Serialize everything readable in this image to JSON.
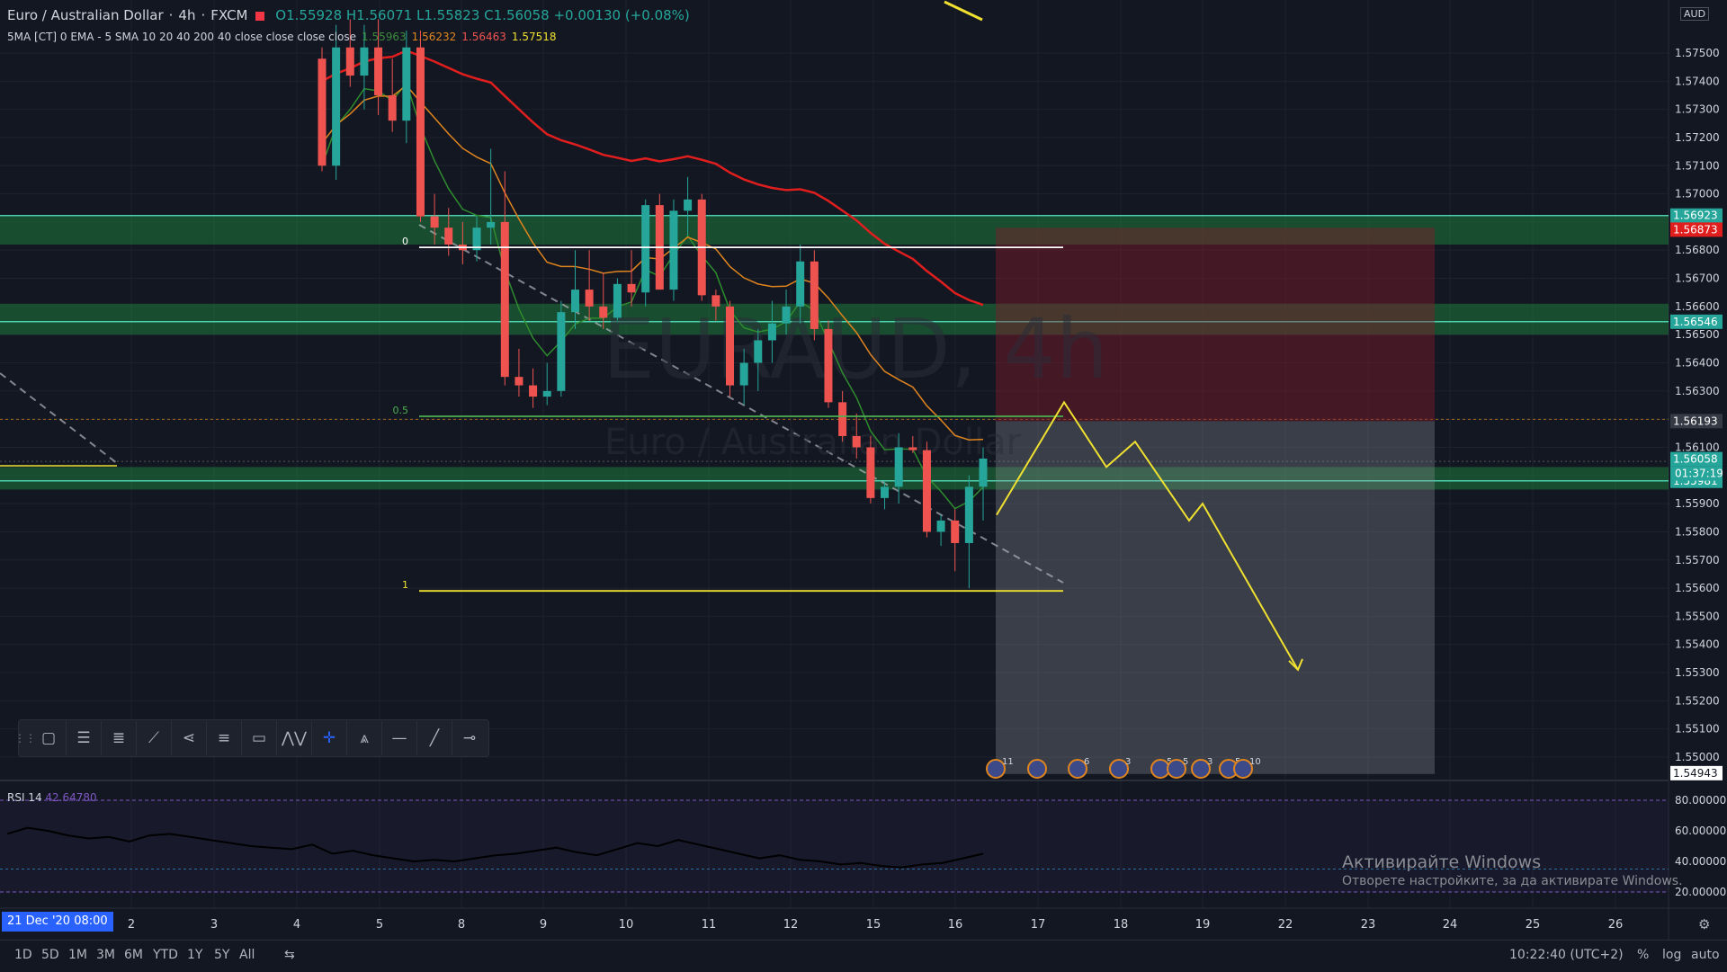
{
  "header": {
    "symbol": "Euro / Australian Dollar",
    "interval": "4h",
    "exchange": "FXCM",
    "open": "O1.55928",
    "high": "H1.56071",
    "low": "L1.55823",
    "close": "C1.56058",
    "change": "+0.00130 (+0.08%)"
  },
  "indicator": {
    "label": "5MA [CT] 0 EMA - 5 SMA 10 20 40 200 40 close close close close",
    "v1": "1.55963",
    "v2": "1.56232",
    "v3": "1.56463",
    "v4": "1.57518"
  },
  "watermark": {
    "symbol": "EURAUD, 4h",
    "name": "Euro / Australian Dollar"
  },
  "currency": "AUD",
  "rsi": {
    "label": "RSI 14",
    "value": "42.64780"
  },
  "windows": {
    "line1": "Активирайте Windows",
    "line2": "Отворете настройките, за да активирате Windows."
  },
  "date_badge": "21 Dec '20   08:00",
  "countdown": "01:37:19",
  "timeframes": [
    "1D",
    "5D",
    "1M",
    "3M",
    "6M",
    "YTD",
    "1Y",
    "5Y",
    "All"
  ],
  "clock": "10:22:40 (UTC+2)",
  "bottom_right": {
    "percent": "%",
    "log": "log",
    "auto": "auto"
  },
  "fib_labels": [
    "0",
    "0.5",
    "1"
  ],
  "icons": {
    "compare": "compare-icon",
    "grip": "grip-icon",
    "settings": "gear-icon"
  },
  "colors": {
    "up": "#26a69a",
    "down": "#ef5350",
    "zone": "#1f7a3a",
    "fib": "#f0e130",
    "ema_red": "#e01e1e",
    "ema_orange": "#e0841e",
    "ema_green": "#2e8b2e"
  },
  "event_badges": [
    "11",
    "",
    "6",
    "3",
    "5",
    "5",
    "3",
    "5",
    "10"
  ],
  "chart_data": {
    "type": "candlestick",
    "title": "EURAUD, 4h",
    "ylim": [
      1.549,
      1.576
    ],
    "price_axis_ticks": [
      "1.57500",
      "1.57400",
      "1.57300",
      "1.57200",
      "1.57100",
      "1.57000",
      "1.56900",
      "1.56800",
      "1.56700",
      "1.56600",
      "1.56500",
      "1.56400",
      "1.56300",
      "1.56200",
      "1.56100",
      "1.56000",
      "1.55900",
      "1.55800",
      "1.55700",
      "1.55600",
      "1.55500",
      "1.55400",
      "1.55300",
      "1.55200",
      "1.55100",
      "1.55000"
    ],
    "price_labels": [
      {
        "value": "1.56923",
        "price": 1.56923,
        "color": "#26a69a"
      },
      {
        "value": "1.56873",
        "price": 1.56873,
        "color": "#e01e1e"
      },
      {
        "value": "1.56546",
        "price": 1.56546,
        "color": "#26a69a"
      },
      {
        "value": "1.56193",
        "price": 1.56193,
        "color": "#363a45"
      },
      {
        "value": "1.56058",
        "price": 1.56058,
        "color": "#26a69a"
      },
      {
        "value": "1.55981",
        "price": 1.55981,
        "color": "#26a69a"
      },
      {
        "value": "1.54943",
        "price": 1.54943,
        "color": "#ffffff"
      }
    ],
    "x_labels": [
      "2",
      "3",
      "4",
      "5",
      "8",
      "9",
      "10",
      "11",
      "12",
      "15",
      "16",
      "17",
      "18",
      "19",
      "22",
      "23",
      "24",
      "25",
      "26"
    ],
    "zones": [
      [
        1.5682,
        1.5692
      ],
      [
        1.565,
        1.5661
      ],
      [
        1.5595,
        1.5603
      ]
    ],
    "zone_lines": [
      1.56923,
      1.56546,
      1.55981
    ],
    "fib": {
      "p0": 1.5681,
      "p05": 1.5621,
      "p1": 1.5559
    },
    "position": {
      "entry": 1.56193,
      "stop": 1.5688,
      "target": 1.5494
    },
    "forecast": [
      [
        1.5586,
        0
      ],
      [
        1.5626,
        1
      ],
      [
        1.5603,
        2
      ],
      [
        1.5612,
        3
      ],
      [
        1.5584,
        4
      ],
      [
        1.559,
        5
      ],
      [
        1.5531,
        6
      ]
    ],
    "candles": [
      [
        1.5748,
        1.5752,
        1.5708,
        1.571
      ],
      [
        1.571,
        1.576,
        1.5705,
        1.5752
      ],
      [
        1.5752,
        1.5762,
        1.5738,
        1.5742
      ],
      [
        1.5742,
        1.576,
        1.573,
        1.5752
      ],
      [
        1.5752,
        1.5762,
        1.5728,
        1.5735
      ],
      [
        1.5735,
        1.5748,
        1.5722,
        1.5726
      ],
      [
        1.5726,
        1.5758,
        1.5718,
        1.5752
      ],
      [
        1.5752,
        1.5758,
        1.569,
        1.5692
      ],
      [
        1.5692,
        1.57,
        1.5682,
        1.5688
      ],
      [
        1.5688,
        1.5695,
        1.5678,
        1.5682
      ],
      [
        1.5682,
        1.569,
        1.5675,
        1.568
      ],
      [
        1.568,
        1.5692,
        1.5676,
        1.5688
      ],
      [
        1.5688,
        1.5716,
        1.5682,
        1.569
      ],
      [
        1.569,
        1.5708,
        1.5632,
        1.5635
      ],
      [
        1.5635,
        1.5645,
        1.5628,
        1.5632
      ],
      [
        1.5632,
        1.5638,
        1.5624,
        1.5628
      ],
      [
        1.5628,
        1.564,
        1.5625,
        1.563
      ],
      [
        1.563,
        1.5662,
        1.5628,
        1.5658
      ],
      [
        1.5658,
        1.568,
        1.5652,
        1.5666
      ],
      [
        1.5666,
        1.568,
        1.5655,
        1.566
      ],
      [
        1.566,
        1.5672,
        1.5652,
        1.5656
      ],
      [
        1.5656,
        1.567,
        1.5655,
        1.5668
      ],
      [
        1.5668,
        1.568,
        1.566,
        1.5665
      ],
      [
        1.5665,
        1.5698,
        1.566,
        1.5696
      ],
      [
        1.5696,
        1.57,
        1.5666,
        1.5666
      ],
      [
        1.5666,
        1.5698,
        1.5662,
        1.5694
      ],
      [
        1.5694,
        1.5706,
        1.5685,
        1.5698
      ],
      [
        1.5698,
        1.57,
        1.5662,
        1.5664
      ],
      [
        1.5664,
        1.5666,
        1.5655,
        1.566
      ],
      [
        1.566,
        1.5662,
        1.5628,
        1.5632
      ],
      [
        1.5632,
        1.5645,
        1.5625,
        1.564
      ],
      [
        1.564,
        1.5652,
        1.563,
        1.5648
      ],
      [
        1.5648,
        1.5662,
        1.564,
        1.5654
      ],
      [
        1.5654,
        1.5666,
        1.565,
        1.566
      ],
      [
        1.566,
        1.5682,
        1.5654,
        1.5676
      ],
      [
        1.5676,
        1.568,
        1.5648,
        1.5652
      ],
      [
        1.5652,
        1.5655,
        1.5624,
        1.5626
      ],
      [
        1.5626,
        1.563,
        1.5612,
        1.5614
      ],
      [
        1.5614,
        1.5622,
        1.5606,
        1.561
      ],
      [
        1.561,
        1.5614,
        1.559,
        1.5592
      ],
      [
        1.5592,
        1.5598,
        1.5588,
        1.5596
      ],
      [
        1.5596,
        1.5615,
        1.559,
        1.561
      ],
      [
        1.561,
        1.5614,
        1.5608,
        1.5609
      ],
      [
        1.5609,
        1.5612,
        1.5578,
        1.558
      ],
      [
        1.558,
        1.5586,
        1.5575,
        1.5584
      ],
      [
        1.5584,
        1.5588,
        1.5566,
        1.5576
      ],
      [
        1.5576,
        1.56,
        1.556,
        1.5596
      ],
      [
        1.5596,
        1.561,
        1.5584,
        1.5606
      ]
    ]
  }
}
